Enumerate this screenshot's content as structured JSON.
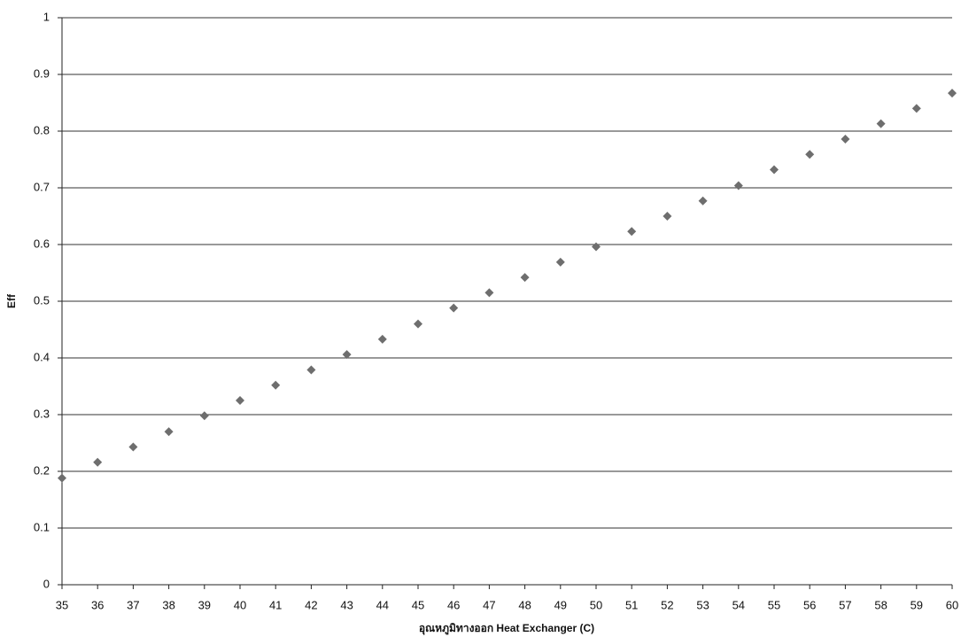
{
  "chart_data": {
    "type": "scatter",
    "x_label": "อุณหภูมิทางออก Heat Exchanger (C)",
    "y_label": "Eff",
    "x": [
      35,
      36,
      37,
      38,
      39,
      40,
      41,
      42,
      43,
      44,
      45,
      46,
      47,
      48,
      49,
      50,
      51,
      52,
      53,
      54,
      55,
      56,
      57,
      58,
      59,
      60
    ],
    "values": [
      0.188,
      0.216,
      0.243,
      0.27,
      0.298,
      0.325,
      0.352,
      0.379,
      0.406,
      0.433,
      0.46,
      0.488,
      0.515,
      0.542,
      0.569,
      0.596,
      0.623,
      0.65,
      0.677,
      0.704,
      0.732,
      0.759,
      0.786,
      0.813,
      0.84,
      0.867
    ],
    "color": "#6e6e6e",
    "xlim": [
      35,
      60
    ],
    "xticks": [
      35,
      36,
      37,
      38,
      39,
      40,
      41,
      42,
      43,
      44,
      45,
      46,
      47,
      48,
      49,
      50,
      51,
      52,
      53,
      54,
      55,
      56,
      57,
      58,
      59,
      60
    ],
    "ylim": [
      0,
      1
    ],
    "yticks": [
      0,
      0.1,
      0.2,
      0.3,
      0.4,
      0.5,
      0.6,
      0.7,
      0.8,
      0.9,
      1
    ],
    "grid": true
  }
}
